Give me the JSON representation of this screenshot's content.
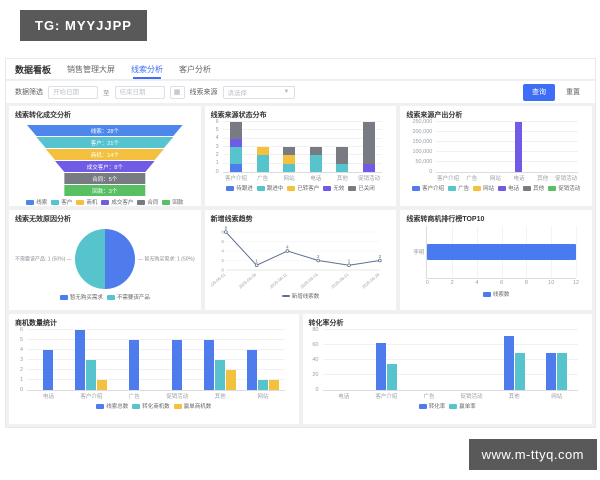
{
  "overlay": {
    "tg_badge": "TG: MYYJJPP",
    "watermark": "www.m-ttyq.com"
  },
  "header": {
    "title": "数据看板",
    "tabs": [
      {
        "label": "销售管理大屏",
        "active": false
      },
      {
        "label": "线索分析",
        "active": true
      },
      {
        "label": "客户分析",
        "active": false
      }
    ]
  },
  "filters": {
    "label": "数据筛选",
    "start_placeholder": "开始日期",
    "separator": "至",
    "end_placeholder": "结束日期",
    "source_label": "线索来源",
    "select_placeholder": "请选择",
    "search_button": "查询",
    "reset_button": "重置"
  },
  "colors": {
    "accent": "#3d6ef5",
    "blue": "#4e7cec",
    "cyan": "#56c3cd",
    "yellow": "#f3c13d",
    "purple": "#6f5be6",
    "gray": "#787b82",
    "green": "#58bf63",
    "line": "#5d7092"
  },
  "chart_data": [
    {
      "type": "funnel",
      "title": "线索转化成交分析",
      "items": [
        {
          "name": "线索",
          "value": "28个",
          "color": "#4e86ec",
          "w_top": 100,
          "w_bottom": 88
        },
        {
          "name": "客户",
          "value": "21个",
          "color": "#55c3d0",
          "w_top": 88,
          "w_bottom": 76
        },
        {
          "name": "商机",
          "value": "14个",
          "color": "#f3c13d",
          "w_top": 76,
          "w_bottom": 64
        },
        {
          "name": "成交客户",
          "value": "8个",
          "color": "#6f5be6",
          "w_top": 64,
          "w_bottom": 52
        },
        {
          "name": "合同",
          "value": "5个",
          "color": "#787b82",
          "w_top": 52,
          "w_bottom": 52
        },
        {
          "name": "回款",
          "value": "3个",
          "color": "#58bf63",
          "w_top": 52,
          "w_bottom": 52
        }
      ]
    },
    {
      "type": "stacked-bar",
      "title": "线索来源状态分布",
      "categories": [
        "客户介绍",
        "广告",
        "网站",
        "电话",
        "其他",
        "促销活动"
      ],
      "series": [
        {
          "name": "待跟进",
          "color": "#4e7cec",
          "values": [
            1,
            0,
            0,
            0,
            0,
            0
          ]
        },
        {
          "name": "跟进中",
          "color": "#56c3cd",
          "values": [
            2,
            2,
            1,
            2,
            1,
            0
          ]
        },
        {
          "name": "已转客户",
          "color": "#f3c13d",
          "values": [
            0,
            1,
            1,
            0,
            0,
            0
          ]
        },
        {
          "name": "无效",
          "color": "#6f5be6",
          "values": [
            1,
            0,
            0,
            0,
            0,
            1
          ]
        },
        {
          "name": "已关闭",
          "color": "#787b82",
          "values": [
            2,
            0,
            1,
            1,
            2,
            5
          ]
        }
      ],
      "ylim": [
        0,
        6
      ],
      "yticks": [
        "0",
        "1",
        "2",
        "3",
        "4",
        "5",
        "6"
      ],
      "ml": 12
    },
    {
      "type": "bar",
      "title": "线索来源产出分析",
      "categories": [
        "客户介绍",
        "广告",
        "网站",
        "电话",
        "其他",
        "促销活动"
      ],
      "series": [
        {
          "name": "产出金额",
          "color": "#6f5be6",
          "values": [
            0,
            0,
            0,
            250000,
            0,
            0
          ]
        }
      ],
      "legend": [
        {
          "name": "客户介绍",
          "color": "#4e7cec"
        },
        {
          "name": "广告",
          "color": "#56c3cd"
        },
        {
          "name": "网站",
          "color": "#f3c13d"
        },
        {
          "name": "电话",
          "color": "#6f5be6"
        },
        {
          "name": "其他",
          "color": "#787b82"
        },
        {
          "name": "促销活动",
          "color": "#58bf63"
        }
      ],
      "ylim": [
        0,
        250000
      ],
      "yticks": [
        "0",
        "50,000",
        "100,000",
        "150,000",
        "200,000",
        "250,000"
      ],
      "ml": 30
    },
    {
      "type": "pie",
      "title": "线索无效原因分析",
      "slices": [
        {
          "name": "暂无购买需求",
          "value": 1,
          "pct": "50%",
          "color": "#4e7cec",
          "side": "right"
        },
        {
          "name": "不需要该产品",
          "value": 1,
          "pct": "50%",
          "color": "#56c3cd",
          "side": "left"
        }
      ]
    },
    {
      "type": "line",
      "title": "新增线索趋势",
      "x": [
        "2025-06-01",
        "2025-06-06",
        "2025-06-11",
        "2025-06-16",
        "2025-06-21",
        "2025-06-26"
      ],
      "values": [
        8,
        1,
        4,
        2,
        1,
        2
      ],
      "ylim": [
        0,
        8
      ],
      "yticks": [
        "0",
        "2",
        "4",
        "6",
        "8"
      ],
      "legend": "新增线索数",
      "color": "#5d7092"
    },
    {
      "type": "hbar",
      "title": "线索转商机排行榜TOP10",
      "categories": [
        "李明"
      ],
      "values": [
        12
      ],
      "xlim": [
        0,
        12
      ],
      "xticks": [
        "0",
        "2",
        "4",
        "6",
        "8",
        "10",
        "12"
      ],
      "legend": "线索数",
      "color": "#4a7af0",
      "ml": 20
    },
    {
      "type": "grouped-bar",
      "title": "商机数量统计",
      "categories": [
        "电话",
        "客户介绍",
        "广告",
        "促销活动",
        "其他",
        "网站"
      ],
      "series": [
        {
          "name": "线索总数",
          "color": "#4e7cec",
          "values": [
            4,
            6,
            5,
            5,
            5,
            4
          ]
        },
        {
          "name": "转化商机数",
          "color": "#56c3cd",
          "values": [
            0,
            3,
            0,
            0,
            3,
            1
          ]
        },
        {
          "name": "赢单商机数",
          "color": "#f3c13d",
          "values": [
            0,
            1,
            0,
            0,
            2,
            1
          ]
        }
      ],
      "ylim": [
        0,
        6
      ],
      "yticks": [
        "0",
        "1",
        "2",
        "3",
        "4",
        "5",
        "6"
      ],
      "ml": 12
    },
    {
      "type": "grouped-bar",
      "title": "转化率分析",
      "categories": [
        "电话",
        "客户介绍",
        "广告",
        "促销活动",
        "其他",
        "网站"
      ],
      "series": [
        {
          "name": "转化率",
          "color": "#4e7cec",
          "values": [
            0,
            63,
            0,
            0,
            72,
            50
          ]
        },
        {
          "name": "赢单率",
          "color": "#56c3cd",
          "values": [
            0,
            35,
            0,
            0,
            50,
            50
          ]
        }
      ],
      "ylim": [
        0,
        80
      ],
      "yticks": [
        "0",
        "20",
        "40",
        "60",
        "80"
      ],
      "ml": 14
    }
  ]
}
